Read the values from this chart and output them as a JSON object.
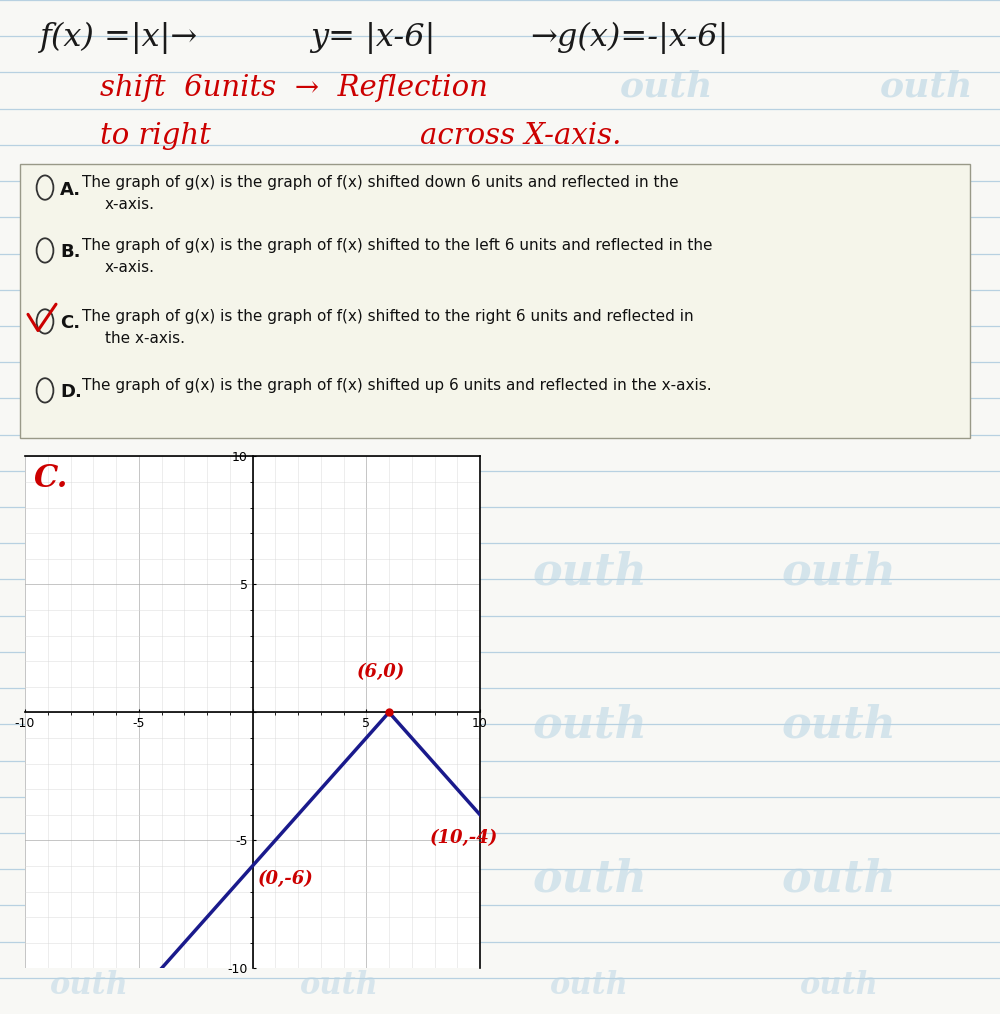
{
  "bg_color": "#f8f8f5",
  "line_color": "#a8c8dc",
  "title_text": "f(x) =|x| → y= |x-6| → g(x)=-|x-6|",
  "subtitle1": "shift  6units  →  Reflection",
  "subtitle2_left": "to right",
  "subtitle2_right": "across X-axis.",
  "options": [
    {
      "label": "A.",
      "text1": "The graph of g(x) is the graph of f(x) shifted down 6 units and reflected in the",
      "text2": "x-axis.",
      "selected": false
    },
    {
      "label": "B.",
      "text1": "The graph of g(x) is the graph of f(x) shifted to the left 6 units and reflected in the",
      "text2": "x-axis.",
      "selected": false
    },
    {
      "label": "C.",
      "text1": "The graph of g(x) is the graph of f(x) shifted to the right 6 units and reflected in",
      "text2": "the x-axis.",
      "selected": true
    },
    {
      "label": "D.",
      "text1": "The graph of g(x) is the graph of f(x) shifted up 6 units and reflected in the x-axis.",
      "text2": "",
      "selected": false
    }
  ],
  "graph_color": "#1a1a8c",
  "annotation_color": "#cc0000",
  "watermark_color": "#b8d4e4",
  "xlim": [
    -10,
    10
  ],
  "ylim": [
    -10,
    10
  ],
  "xticks": [
    -10,
    -5,
    0,
    5,
    10
  ],
  "yticks": [
    -10,
    -5,
    0,
    5,
    10
  ]
}
